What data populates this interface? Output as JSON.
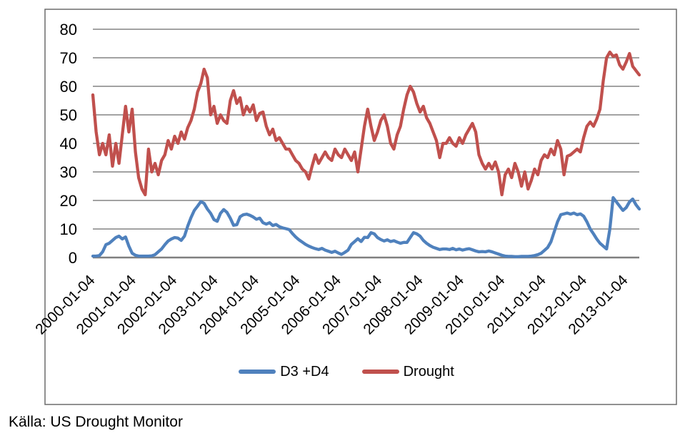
{
  "caption": "Källa: US Drought Monitor",
  "colors": {
    "background": "#FFFFFF",
    "frame_border": "#6B6B6B",
    "gridline": "#848484",
    "axis_line": "#7F7F7F",
    "text": "#000000",
    "series_blue": "#4F81BD",
    "series_red": "#C0504D"
  },
  "chart_data": {
    "type": "line",
    "title": "",
    "xlabel": "",
    "ylabel": "",
    "grid": true,
    "legend_position": "bottom",
    "ylim": [
      0,
      80
    ],
    "ytick_step": 10,
    "yticks": [
      "0",
      "10",
      "20",
      "30",
      "40",
      "50",
      "60",
      "70",
      "80"
    ],
    "xticks": [
      "2000-01-04",
      "2001-01-04",
      "2002-01-04",
      "2003-01-04",
      "2004-01-04",
      "2005-01-04",
      "2006-01-04",
      "2007-01-04",
      "2008-01-04",
      "2009-01-04",
      "2010-01-04",
      "2011-01-04",
      "2012-01-04",
      "2013-01-04"
    ],
    "x_span_years": 13.33,
    "sampling": "168 evenly spaced samples (approx. monthly) from 2000-01-04 to ~2013-05; values are % area",
    "series": [
      {
        "name": "D3 +D4",
        "color": "#4F81BD",
        "values": [
          0.5,
          0.5,
          0.7,
          2,
          4.5,
          5,
          6,
          7,
          7.5,
          6.5,
          7.2,
          4,
          1.5,
          0.8,
          0.5,
          0.5,
          0.5,
          0.5,
          0.6,
          1,
          2,
          3,
          4.5,
          5.8,
          6.5,
          7,
          6.8,
          6,
          7.5,
          11,
          14,
          16.5,
          18,
          19.6,
          19,
          17,
          15.5,
          13.3,
          12.7,
          15.5,
          16.8,
          15.8,
          13.8,
          11.3,
          11.5,
          14.3,
          15,
          15.2,
          14.8,
          14.2,
          13.4,
          13.8,
          12.2,
          11.7,
          12.2,
          11.2,
          11.6,
          10.8,
          10.4,
          10.1,
          9.8,
          8.4,
          7.2,
          6.2,
          5.4,
          4.6,
          4,
          3.5,
          3.1,
          2.8,
          3.2,
          2.6,
          2.2,
          1.8,
          2.2,
          1.6,
          1.1,
          1.8,
          2.6,
          4.6,
          5.6,
          6.6,
          5.6,
          7.1,
          7,
          8.7,
          8.3,
          7,
          6.3,
          5.8,
          6.2,
          5.6,
          5.9,
          5.4,
          5,
          5.3,
          5.3,
          7,
          8.7,
          8.3,
          7.5,
          6,
          5,
          4.2,
          3.6,
          3.2,
          2.8,
          3,
          3,
          2.8,
          3.2,
          2.7,
          3,
          2.6,
          2.9,
          3.1,
          2.7,
          2.3,
          2,
          2.1,
          2,
          2.3,
          2,
          1.6,
          1.2,
          0.8,
          0.5,
          0.4,
          0.4,
          0.3,
          0.3,
          0.4,
          0.4,
          0.4,
          0.5,
          0.7,
          1,
          1.5,
          2.5,
          3.5,
          5.5,
          9,
          12.5,
          15,
          15.3,
          15.6,
          15.2,
          15.6,
          15,
          15.3,
          14.5,
          12.5,
          10,
          8.3,
          6.5,
          5,
          4,
          3,
          10,
          21,
          19.5,
          18,
          16.5,
          17.5,
          19.5,
          20.5,
          18.5,
          17
        ]
      },
      {
        "name": "Drought",
        "color": "#C0504D",
        "values": [
          57,
          44,
          36,
          40,
          36,
          43,
          32,
          40,
          33,
          43,
          53,
          44,
          52,
          37,
          28,
          24,
          22,
          38,
          30,
          33,
          29,
          34,
          36,
          41,
          38,
          42.5,
          40,
          44,
          41.5,
          45.5,
          48,
          52,
          58,
          61,
          66,
          63,
          50,
          53,
          47,
          50,
          48,
          47,
          55,
          58.5,
          54,
          56,
          50,
          53,
          51,
          53.5,
          48,
          50.5,
          51,
          46,
          43,
          45,
          41,
          42,
          40,
          38,
          38,
          36,
          34,
          33,
          31,
          30,
          27.5,
          32,
          36,
          33,
          35,
          37,
          35,
          34,
          38,
          36,
          35,
          38,
          36,
          34,
          37,
          30,
          38,
          46,
          52,
          46,
          41,
          44,
          48,
          50,
          46,
          40,
          38,
          43,
          46,
          52,
          57,
          60,
          58,
          54,
          51,
          53,
          49,
          47,
          44,
          41,
          35,
          40,
          40,
          42,
          40,
          39,
          42,
          40,
          43,
          45,
          47,
          44,
          36,
          33,
          31,
          33,
          31,
          33.5,
          30,
          22,
          29,
          31,
          28,
          33,
          30,
          25,
          30,
          24,
          27,
          31,
          29,
          34,
          36,
          35,
          38,
          36,
          41,
          38,
          29,
          35.5,
          36,
          37,
          38,
          37,
          42,
          46,
          47.5,
          46,
          48.5,
          52,
          62,
          70,
          72,
          70.5,
          71,
          67.5,
          66,
          68.5,
          71.5,
          67,
          65.5,
          64
        ]
      }
    ]
  }
}
